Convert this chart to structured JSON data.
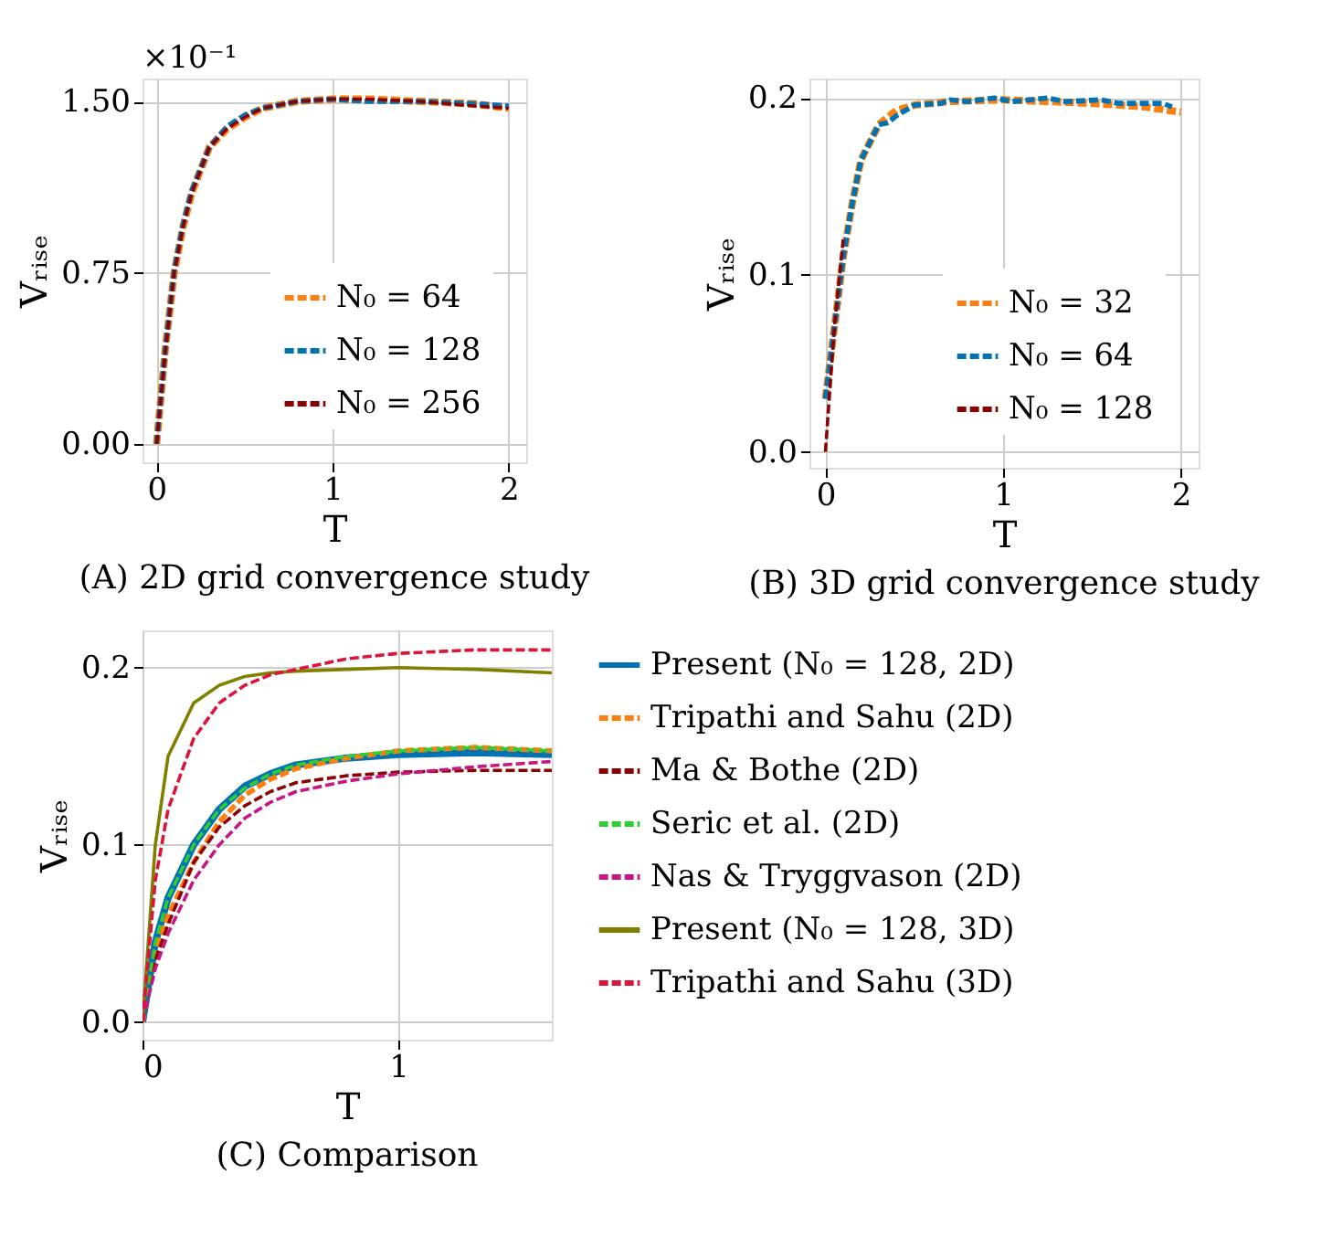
{
  "chart_data": [
    {
      "type": "line",
      "title": "(A) 2D grid convergence study",
      "xlabel": "T",
      "ylabel": "Vᵣᵢₛₑ",
      "annotations": [
        "×10⁻¹"
      ],
      "xlim": [
        -0.08,
        2.1
      ],
      "ylim": [
        -0.08,
        1.6
      ],
      "xticks": [
        0,
        1,
        2
      ],
      "yticks": [
        {
          "value": 0,
          "label": "0.00"
        },
        {
          "value": 0.75,
          "label": "0.75"
        },
        {
          "value": 1.5,
          "label": "1.50"
        }
      ],
      "grid": true,
      "legend": "bottom right",
      "x": [
        0,
        0.05,
        0.1,
        0.15,
        0.2,
        0.3,
        0.4,
        0.5,
        0.6,
        0.8,
        1.0,
        1.2,
        1.5,
        1.8,
        2.0
      ],
      "series": [
        {
          "name": "N₀ = 64",
          "color": "#ff7f0e",
          "line_style": "dashed",
          "values": [
            0,
            0.42,
            0.75,
            0.95,
            1.1,
            1.3,
            1.38,
            1.43,
            1.47,
            1.5,
            1.51,
            1.51,
            1.5,
            1.49,
            1.47
          ]
        },
        {
          "name": "N₀ = 128",
          "color": "#0173b2",
          "line_style": "dashed",
          "values": [
            0,
            0.42,
            0.76,
            0.96,
            1.11,
            1.3,
            1.39,
            1.44,
            1.47,
            1.5,
            1.51,
            1.5,
            1.5,
            1.49,
            1.48
          ]
        },
        {
          "name": "N₀ = 256",
          "color": "#8b0000",
          "line_style": "dashed",
          "values": [
            0,
            0.41,
            0.75,
            0.95,
            1.1,
            1.3,
            1.38,
            1.43,
            1.47,
            1.5,
            1.51,
            1.51,
            1.5,
            1.48,
            1.47
          ]
        }
      ]
    },
    {
      "type": "line",
      "title": "(B) 3D grid convergence study",
      "xlabel": "T",
      "ylabel": "Vᵣᵢₛₑ",
      "xlim": [
        -0.09,
        2.1
      ],
      "ylim": [
        -0.009,
        0.211
      ],
      "xticks": [
        0,
        1,
        2
      ],
      "yticks": [
        {
          "value": 0,
          "label": "0.0"
        },
        {
          "value": 0.1,
          "label": "0.1"
        },
        {
          "value": 0.2,
          "label": "0.2"
        }
      ],
      "grid": true,
      "legend": "bottom right",
      "series": [
        {
          "name": "N₀ = 32",
          "color": "#ff7f0e",
          "line_style": "dashed",
          "x": [
            0,
            0.05,
            0.1,
            0.15,
            0.2,
            0.3,
            0.4,
            0.5,
            0.7,
            1.0,
            1.5,
            1.8,
            2.0
          ],
          "values": [
            0.03,
            0.07,
            0.11,
            0.14,
            0.165,
            0.185,
            0.193,
            0.196,
            0.198,
            0.199,
            0.197,
            0.195,
            0.192
          ]
        },
        {
          "name": "N₀ = 64",
          "color": "#0173b2",
          "line_style": "dashed",
          "x": [
            0,
            0.05,
            0.1,
            0.15,
            0.2,
            0.3,
            0.35,
            0.4,
            0.5,
            0.65,
            0.7,
            0.8,
            0.95,
            1.05,
            1.25,
            1.35,
            1.55,
            1.65,
            1.9,
            1.95
          ],
          "values": [
            0.03,
            0.07,
            0.11,
            0.14,
            0.165,
            0.185,
            0.186,
            0.19,
            0.196,
            0.197,
            0.199,
            0.198,
            0.2,
            0.198,
            0.2,
            0.198,
            0.199,
            0.197,
            0.197,
            0.195
          ]
        },
        {
          "name": "N₀ = 128",
          "color": "#8b0000",
          "line_style": "dashed",
          "x": [
            0,
            0.05,
            0.1
          ],
          "values": [
            0,
            0.07,
            0.12
          ]
        }
      ]
    },
    {
      "type": "line",
      "title": "(C) Comparison",
      "xlabel": "T",
      "ylabel": "Vᵣᵢₛₑ",
      "xlim": [
        0,
        1.6
      ],
      "ylim": [
        -0.01,
        0.221
      ],
      "xticks": [
        0,
        1
      ],
      "yticks": [
        {
          "value": 0,
          "label": "0.0"
        },
        {
          "value": 0.1,
          "label": "0.1"
        },
        {
          "value": 0.2,
          "label": "0.2"
        }
      ],
      "grid": true,
      "legend": "right",
      "x": [
        0,
        0.05,
        0.1,
        0.2,
        0.3,
        0.4,
        0.5,
        0.6,
        0.8,
        1.0,
        1.3,
        1.6
      ],
      "series": [
        {
          "name": "Present (N₀ = 128, 2D)",
          "color": "#0173b2",
          "line_style": "solid",
          "values": [
            0,
            0.045,
            0.07,
            0.1,
            0.12,
            0.133,
            0.14,
            0.145,
            0.149,
            0.151,
            0.152,
            0.151
          ]
        },
        {
          "name": "Tripathi and Sahu (2D)",
          "color": "#ff7f0e",
          "line_style": "dashed",
          "values": [
            0,
            0.04,
            0.06,
            0.09,
            0.113,
            0.128,
            0.137,
            0.143,
            0.149,
            0.153,
            0.155,
            0.153
          ]
        },
        {
          "name": "Ma & Bothe (2D)",
          "color": "#8b0000",
          "line_style": "dashed",
          "values": [
            0,
            0.035,
            0.055,
            0.09,
            0.11,
            0.122,
            0.13,
            0.135,
            0.139,
            0.141,
            0.142,
            0.142
          ]
        },
        {
          "name": "Seric et al. (2D)",
          "color": "#32cd32",
          "line_style": "dashed",
          "values": [
            0,
            0.045,
            0.07,
            0.1,
            0.12,
            0.132,
            0.14,
            0.145,
            0.15,
            0.153,
            0.155,
            0.153
          ]
        },
        {
          "name": "Nas & Tryggvason (2D)",
          "color": "#c71585",
          "line_style": "dashed",
          "values": [
            0,
            0.03,
            0.05,
            0.08,
            0.1,
            0.115,
            0.124,
            0.13,
            0.136,
            0.14,
            0.144,
            0.147
          ]
        },
        {
          "name": "Present (N₀ = 128, 3D)",
          "color": "#808000",
          "line_style": "solid",
          "values": [
            0,
            0.1,
            0.15,
            0.18,
            0.19,
            0.195,
            0.197,
            0.198,
            0.199,
            0.2,
            0.199,
            0.197
          ]
        },
        {
          "name": "Tripathi and Sahu (3D)",
          "color": "#dc143c",
          "line_style": "dashed",
          "values": [
            0,
            0.08,
            0.12,
            0.16,
            0.18,
            0.19,
            0.196,
            0.199,
            0.205,
            0.208,
            0.21,
            0.21
          ]
        }
      ]
    }
  ]
}
